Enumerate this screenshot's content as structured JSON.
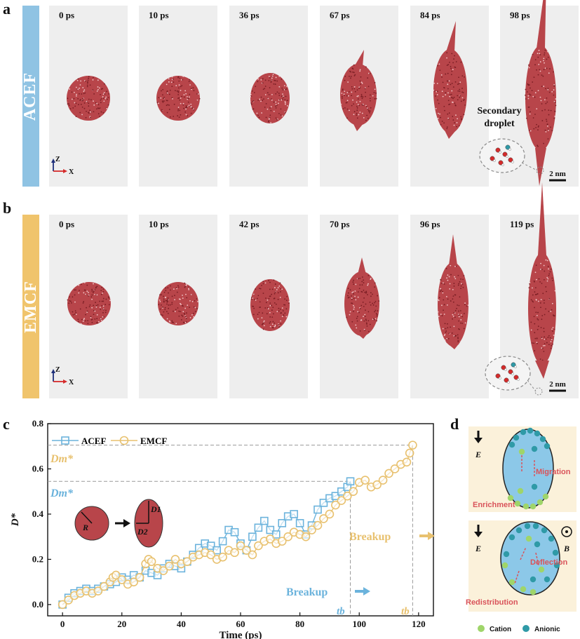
{
  "panel_a": {
    "letter": "a",
    "field": "ACEF",
    "bar_color": "#8fc3e3",
    "times": [
      "0 ps",
      "10 ps",
      "36 ps",
      "67 ps",
      "84 ps",
      "98 ps"
    ],
    "secondary_label": "Secondary droplet",
    "axes": {
      "z": "Z",
      "x": "X"
    },
    "scale": "2 nm"
  },
  "panel_b": {
    "letter": "b",
    "field": "EMCF",
    "bar_color": "#f0c46c",
    "times": [
      "0 ps",
      "10 ps",
      "42 ps",
      "70 ps",
      "96 ps",
      "119 ps"
    ],
    "axes": {
      "z": "Z",
      "x": "X"
    },
    "scale": "2 nm"
  },
  "panel_c": {
    "letter": "c",
    "legend": [
      "ACEF",
      "EMCF"
    ],
    "dm_label_acef": "Dm*",
    "dm_label_emcf": "Dm*",
    "breakup_acef": "Breakup",
    "breakup_emcf": "Breakup",
    "tb_label": "tb",
    "inset": {
      "R": "R",
      "D1": "D1",
      "D2": "D2"
    }
  },
  "chart_data": {
    "type": "scatter",
    "title": "",
    "xlabel": "Time (ps)",
    "ylabel": "D*",
    "xlim": [
      -5,
      125
    ],
    "ylim": [
      -0.05,
      0.8
    ],
    "xticks": [
      0,
      20,
      40,
      60,
      80,
      100,
      120
    ],
    "yticks": [
      0.0,
      0.2,
      0.4,
      0.6,
      0.8
    ],
    "colors": {
      "ACEF": "#6bb3dc",
      "EMCF": "#e8c16f"
    },
    "dm_acef": 0.545,
    "dm_emcf": 0.705,
    "tb_acef": 97,
    "tb_emcf": 118,
    "series": [
      {
        "name": "ACEF",
        "marker": "square",
        "x": [
          0,
          2,
          4,
          6,
          8,
          10,
          12,
          14,
          16,
          18,
          20,
          22,
          24,
          26,
          28,
          30,
          32,
          34,
          36,
          38,
          40,
          42,
          44,
          46,
          48,
          50,
          52,
          54,
          56,
          58,
          60,
          62,
          64,
          66,
          68,
          70,
          72,
          74,
          76,
          78,
          80,
          82,
          84,
          86,
          88,
          90,
          92,
          94,
          96,
          97
        ],
        "y": [
          0.0,
          0.03,
          0.05,
          0.06,
          0.07,
          0.06,
          0.07,
          0.08,
          0.09,
          0.1,
          0.12,
          0.11,
          0.13,
          0.12,
          0.15,
          0.14,
          0.13,
          0.16,
          0.18,
          0.17,
          0.16,
          0.19,
          0.22,
          0.25,
          0.27,
          0.26,
          0.24,
          0.28,
          0.33,
          0.32,
          0.27,
          0.24,
          0.3,
          0.34,
          0.37,
          0.33,
          0.31,
          0.36,
          0.39,
          0.4,
          0.36,
          0.31,
          0.35,
          0.42,
          0.45,
          0.47,
          0.48,
          0.5,
          0.52,
          0.545
        ]
      },
      {
        "name": "EMCF",
        "marker": "circle",
        "x": [
          0,
          2,
          4,
          6,
          8,
          10,
          12,
          14,
          16,
          17,
          18,
          20,
          22,
          24,
          26,
          28,
          29,
          30,
          32,
          34,
          36,
          38,
          40,
          42,
          44,
          46,
          48,
          50,
          52,
          54,
          56,
          58,
          60,
          62,
          64,
          66,
          68,
          70,
          72,
          74,
          76,
          78,
          80,
          82,
          84,
          86,
          88,
          90,
          92,
          94,
          96,
          98,
          100,
          102,
          104,
          106,
          108,
          110,
          112,
          114,
          116,
          117,
          118
        ],
        "y": [
          0.0,
          0.02,
          0.04,
          0.05,
          0.06,
          0.05,
          0.06,
          0.08,
          0.1,
          0.12,
          0.13,
          0.11,
          0.09,
          0.1,
          0.12,
          0.18,
          0.2,
          0.19,
          0.16,
          0.15,
          0.17,
          0.2,
          0.18,
          0.19,
          0.21,
          0.22,
          0.23,
          0.22,
          0.2,
          0.21,
          0.24,
          0.23,
          0.26,
          0.24,
          0.22,
          0.26,
          0.28,
          0.29,
          0.27,
          0.28,
          0.3,
          0.32,
          0.31,
          0.3,
          0.33,
          0.35,
          0.38,
          0.4,
          0.44,
          0.46,
          0.48,
          0.5,
          0.54,
          0.55,
          0.52,
          0.53,
          0.55,
          0.58,
          0.6,
          0.62,
          0.63,
          0.67,
          0.705
        ]
      }
    ]
  },
  "panel_d": {
    "letter": "d",
    "top": {
      "field": "E",
      "migration": "Migration",
      "enrichment": "Enrichment"
    },
    "bottom": {
      "field": "E",
      "field_b": "B",
      "deflection": "Deflection",
      "redistribution": "Redistribution"
    },
    "legend": {
      "cation": "Cation",
      "anionic": "Anionic"
    },
    "colors": {
      "cation": "#9fd56a",
      "anion": "#2f9aa7",
      "droplet": "#8cc8e8",
      "text": "#d9535a"
    }
  }
}
